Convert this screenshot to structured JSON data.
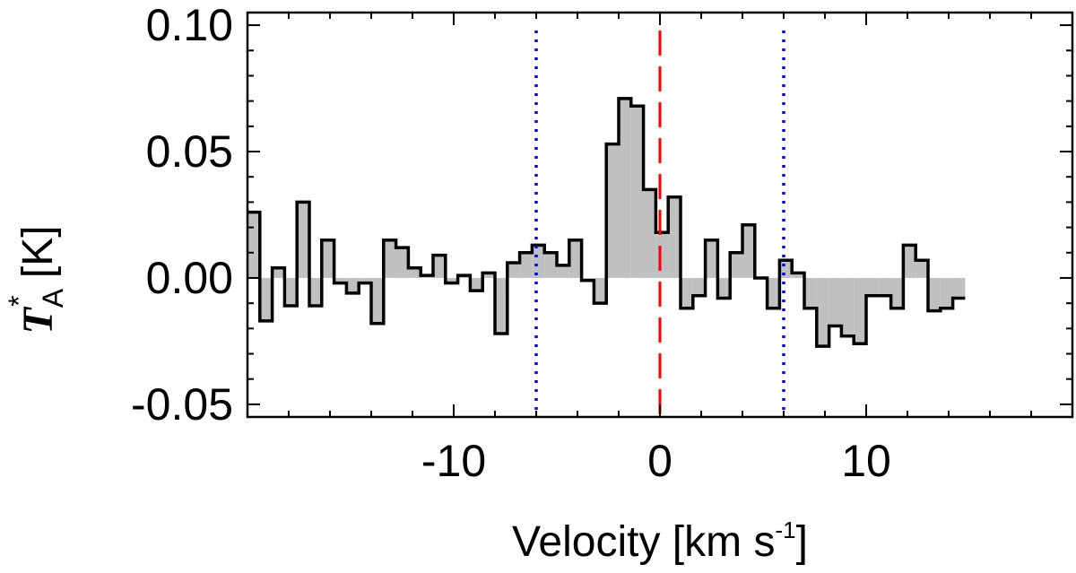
{
  "chart_data": {
    "type": "step",
    "title": "",
    "xlabel": "Velocity [km s",
    "xlabel_sup": "-1",
    "xlabel_end": "]",
    "ylabel_main": "T",
    "ylabel_sub": "A",
    "ylabel_sup": "*",
    "ylabel_unit": " [K]",
    "xlim": [
      -20,
      20
    ],
    "ylim": [
      -0.055,
      0.105
    ],
    "x_ticks": [
      -10,
      0,
      10
    ],
    "x_tick_labels": [
      "-10",
      "0",
      "10"
    ],
    "y_ticks": [
      -0.05,
      0.0,
      0.05,
      0.1
    ],
    "y_tick_labels": [
      "-0.05",
      "0.00",
      "0.05",
      "0.10"
    ],
    "channel_width": 0.6,
    "x_start": -20.0,
    "series": [
      {
        "name": "spectrum",
        "fill": "#c0c0c0",
        "values": [
          0.026,
          -0.017,
          0.004,
          -0.011,
          0.03,
          -0.011,
          0.015,
          -0.002,
          -0.006,
          -0.002,
          -0.018,
          0.015,
          0.012,
          0.004,
          0.001,
          0.009,
          -0.002,
          0.001,
          -0.005,
          0.002,
          -0.022,
          0.006,
          0.01,
          0.013,
          0.01,
          0.005,
          0.015,
          -0.001,
          -0.01,
          0.053,
          0.071,
          0.068,
          0.035,
          0.018,
          0.032,
          -0.012,
          -0.007,
          0.015,
          -0.008,
          0.01,
          0.021,
          0.0,
          -0.012,
          0.007,
          0.002,
          -0.012,
          -0.027,
          -0.019,
          -0.023,
          -0.026,
          -0.007,
          -0.007,
          -0.012,
          0.013,
          0.007,
          -0.013,
          -0.012,
          -0.008
        ]
      }
    ],
    "reference_lines": [
      {
        "name": "systemic-velocity",
        "x": 0,
        "color": "#ff0000",
        "style": "dashed"
      },
      {
        "name": "integration-limit-low",
        "x": -6,
        "color": "#0000ff",
        "style": "dotted"
      },
      {
        "name": "integration-limit-high",
        "x": 6,
        "color": "#0000ff",
        "style": "dotted"
      }
    ],
    "colors": {
      "axis": "#000000",
      "fill": "#c0c0c0",
      "line": "#000000"
    }
  }
}
